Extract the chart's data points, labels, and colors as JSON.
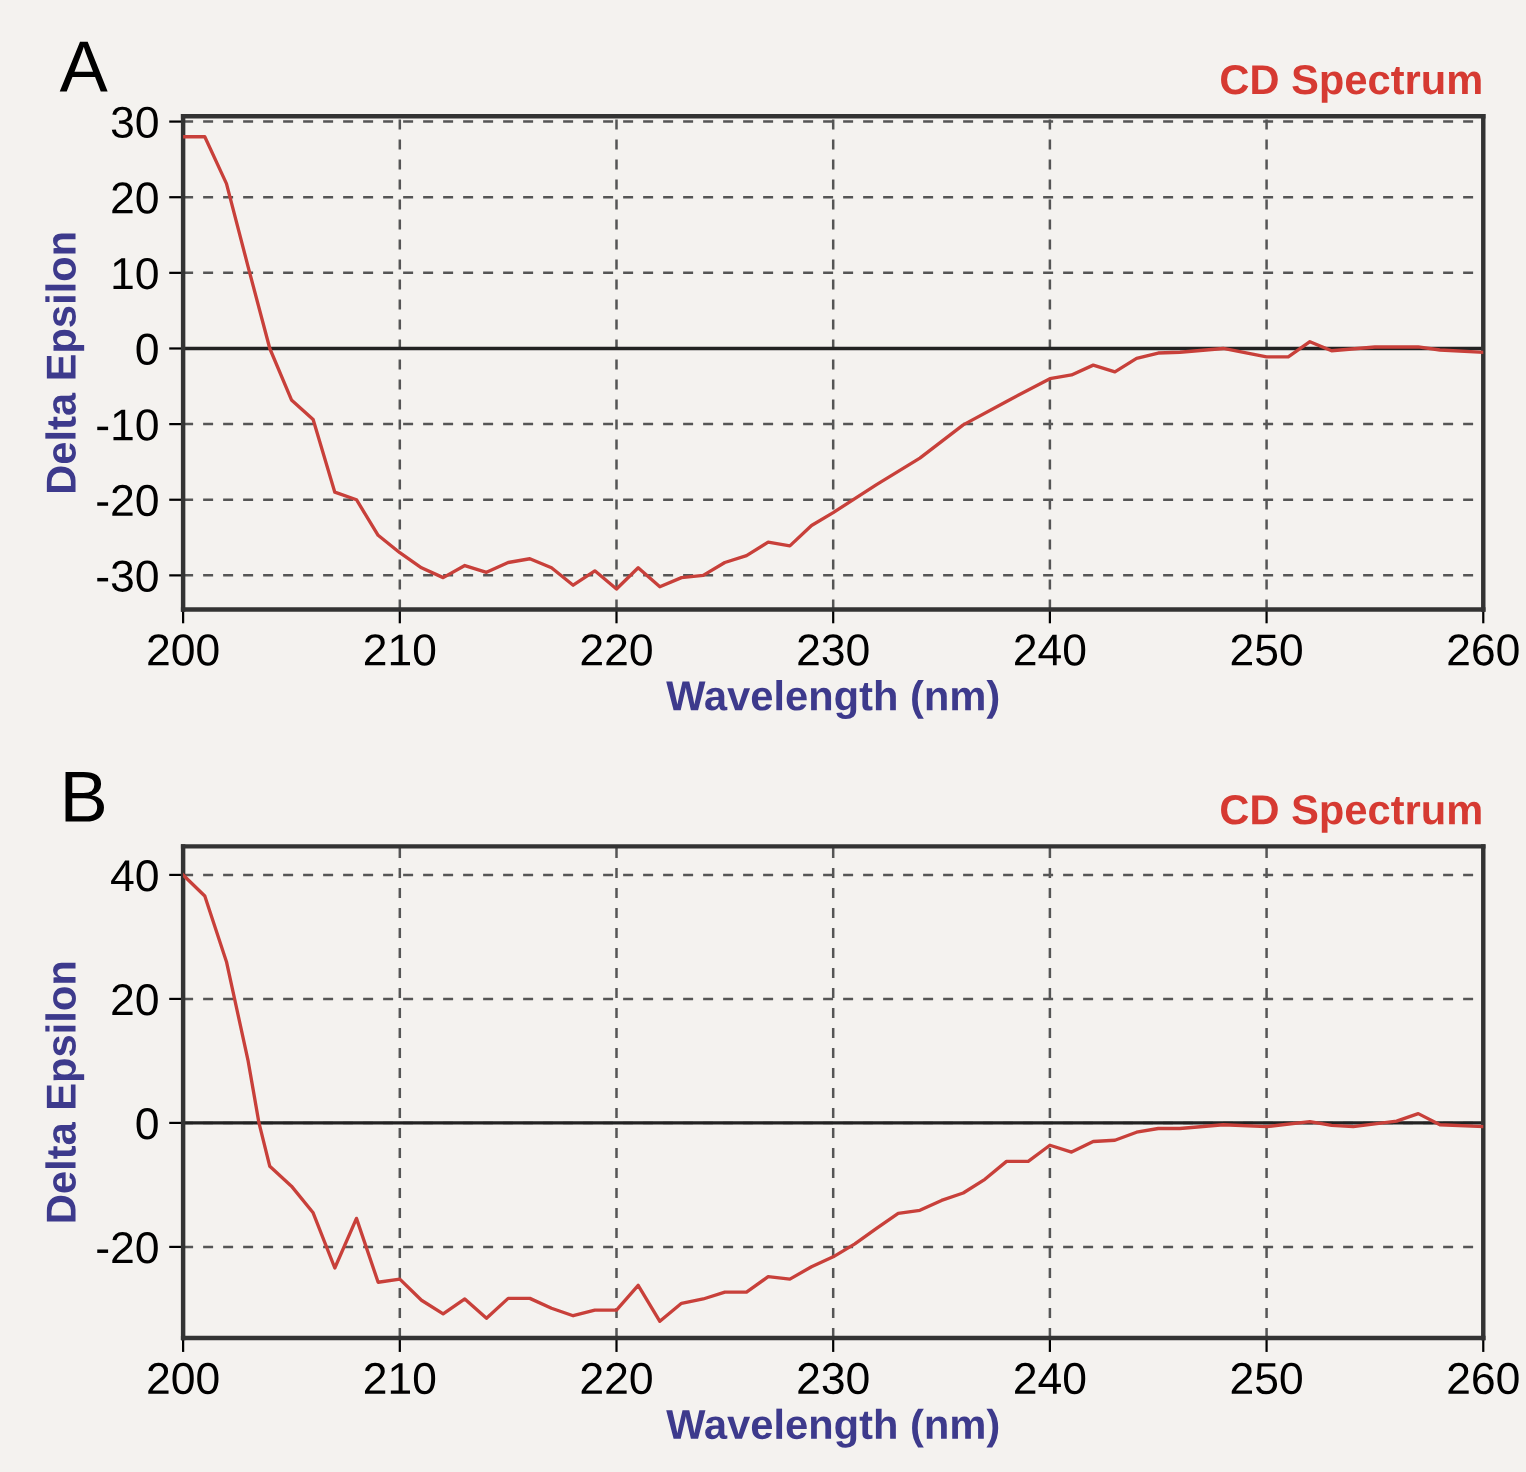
{
  "chart_data": [
    {
      "type": "line",
      "title": "CD Spectrum",
      "xlabel": "Wavelength (nm)",
      "ylabel": "Delta Epsilon",
      "annotations": [
        "A"
      ],
      "series": [
        {
          "color": "#c8403a",
          "x": [
            200,
            201,
            202,
            203,
            204,
            205,
            206,
            207,
            208,
            209,
            210,
            211,
            212,
            213,
            214,
            215,
            216,
            217,
            218,
            219,
            220,
            221,
            222,
            223,
            224,
            225,
            226,
            227,
            228,
            229,
            230,
            232,
            234,
            236,
            238,
            240,
            241,
            242,
            243,
            244,
            245,
            246,
            248,
            250,
            251,
            252,
            253,
            255,
            257,
            258,
            260
          ],
          "values": [
            28,
            28,
            21.8,
            10.8,
            0,
            -6.8,
            -9.4,
            -19,
            -20,
            -24.7,
            -27,
            -29,
            -30.3,
            -28.7,
            -29.6,
            -28.3,
            -27.8,
            -29,
            -31.3,
            -29.4,
            -31.8,
            -29,
            -31.5,
            -30.3,
            -30,
            -28.3,
            -27.4,
            -25.6,
            -26.1,
            -23.4,
            -21.7,
            -18,
            -14.5,
            -10.1,
            -7,
            -4,
            -3.5,
            -2.2,
            -3.1,
            -1.3,
            -0.6,
            -0.5,
            0,
            -1.1,
            -1.1,
            0.9,
            -0.3,
            0.2,
            0.2,
            -0.2,
            -0.5
          ]
        }
      ],
      "xlim": [
        200,
        260
      ],
      "xticks": [
        200,
        210,
        220,
        230,
        240,
        250,
        260
      ],
      "ylim": [
        -34.5,
        30.7
      ],
      "yticks": [
        -30,
        -20,
        -10,
        0,
        10,
        20,
        30
      ],
      "grid": true,
      "line_style": "solid",
      "ref_lines": [
        {
          "axis": "y",
          "value": 0,
          "color": "#222222",
          "line_style": "solid"
        }
      ]
    },
    {
      "type": "line",
      "title": "CD Spectrum",
      "xlabel": "Wavelength (nm)",
      "ylabel": "Delta Epsilon",
      "annotations": [
        "B"
      ],
      "series": [
        {
          "color": "#c8403a",
          "x": [
            200,
            201,
            202,
            203,
            203.5,
            204,
            205,
            206,
            207,
            208,
            209,
            210,
            211,
            212,
            213,
            214,
            215,
            216,
            217,
            218,
            219,
            220,
            221,
            222,
            223,
            224,
            225,
            226,
            227,
            228,
            229,
            230,
            231,
            232,
            233,
            234,
            235,
            236,
            237,
            238,
            239,
            240,
            241,
            242,
            243,
            244,
            245,
            246,
            248,
            250,
            252,
            253,
            254,
            256,
            257,
            258,
            260
          ],
          "values": [
            40,
            36.6,
            26,
            10,
            0,
            -7,
            -10.2,
            -14.5,
            -23.4,
            -15.4,
            -25.7,
            -25.2,
            -28.6,
            -30.8,
            -28.4,
            -31.5,
            -28.3,
            -28.3,
            -29.9,
            -31.1,
            -30.2,
            -30.2,
            -26.2,
            -32,
            -29.1,
            -28.4,
            -27.3,
            -27.3,
            -24.8,
            -25.2,
            -23.2,
            -21.6,
            -19.5,
            -17,
            -14.6,
            -14.1,
            -12.5,
            -11.3,
            -9.1,
            -6.2,
            -6.2,
            -3.6,
            -4.7,
            -3,
            -2.8,
            -1.5,
            -0.9,
            -0.9,
            -0.3,
            -0.6,
            0.2,
            -0.4,
            -0.6,
            0.3,
            1.5,
            -0.3,
            -0.6
          ]
        }
      ],
      "xlim": [
        200,
        260
      ],
      "xticks": [
        200,
        210,
        220,
        230,
        240,
        250,
        260
      ],
      "ylim": [
        -34.7,
        44.6
      ],
      "yticks": [
        -20,
        0,
        20,
        40
      ],
      "grid": true,
      "line_style": "solid",
      "ref_lines": [
        {
          "axis": "y",
          "value": 0,
          "color": "#222222",
          "line_style": "solid"
        }
      ]
    }
  ]
}
